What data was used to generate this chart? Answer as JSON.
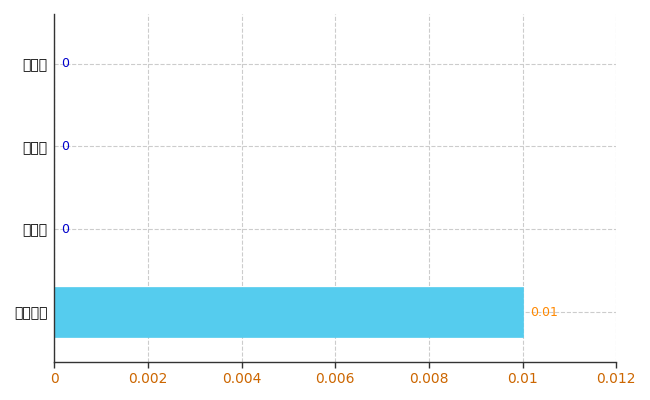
{
  "categories": [
    "全国平均",
    "県最大",
    "県平均",
    "下野市"
  ],
  "values": [
    0.01,
    0,
    0,
    0
  ],
  "bar_color": "#55CCEE",
  "bar_edge_color": "#55CCEE",
  "value_labels": [
    "0.01",
    "0",
    "0",
    "0"
  ],
  "value_label_color_nonzero": "#FF8800",
  "value_label_color_zero": "#0000CC",
  "xlim": [
    0,
    0.012
  ],
  "xticks": [
    0,
    0.002,
    0.004,
    0.006,
    0.008,
    0.01,
    0.012
  ],
  "grid_color": "#CCCCCC",
  "grid_linestyle": "--",
  "background_color": "#FFFFFF",
  "bar_height": 0.6,
  "font_size_ticks": 10,
  "font_size_labels": 9
}
